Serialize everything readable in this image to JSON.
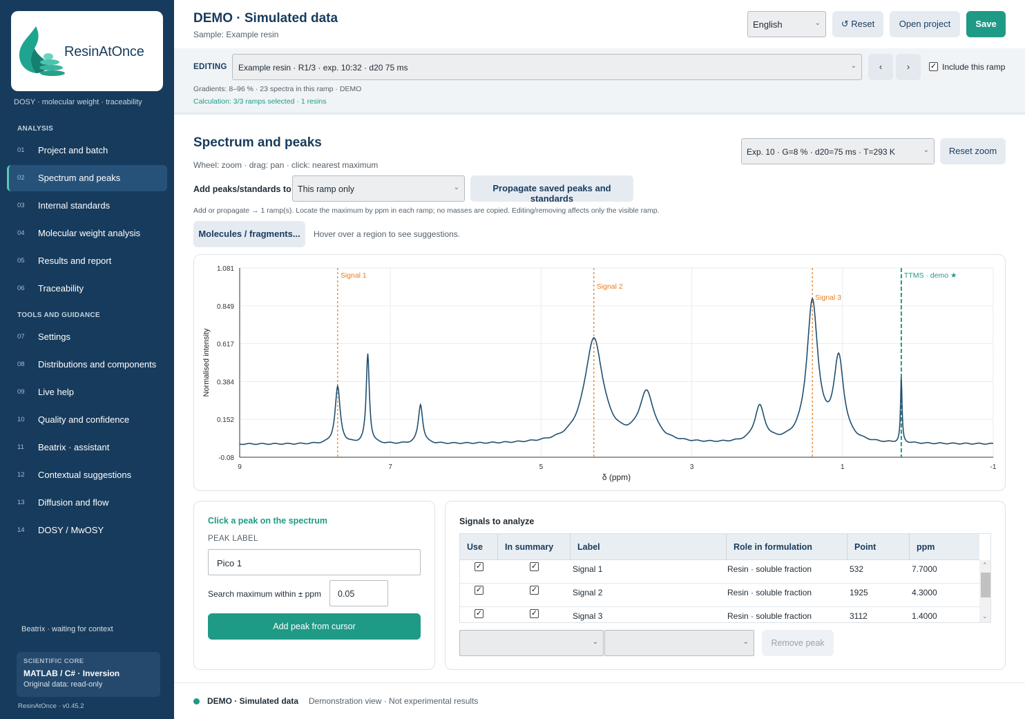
{
  "app": {
    "name": "ResinAtOnce",
    "tagline": "DOSY · molecular weight · traceability",
    "version": "ResinAtOnce · v0.45.2"
  },
  "sidebar": {
    "analysis_title": "ANALYSIS",
    "tools_title": "TOOLS AND GUIDANCE",
    "items": [
      {
        "num": "01",
        "label": "Project and batch"
      },
      {
        "num": "02",
        "label": "Spectrum and peaks",
        "active": true
      },
      {
        "num": "03",
        "label": "Internal standards"
      },
      {
        "num": "04",
        "label": "Molecular weight analysis"
      },
      {
        "num": "05",
        "label": "Results and report"
      },
      {
        "num": "06",
        "label": "Traceability"
      },
      {
        "num": "07",
        "label": "Settings"
      },
      {
        "num": "08",
        "label": "Distributions and components"
      },
      {
        "num": "09",
        "label": "Live help"
      },
      {
        "num": "10",
        "label": "Quality and confidence"
      },
      {
        "num": "11",
        "label": "Beatrix · assistant"
      },
      {
        "num": "12",
        "label": "Contextual suggestions"
      },
      {
        "num": "13",
        "label": "Diffusion and flow"
      },
      {
        "num": "14",
        "label": "DOSY / MwOSY"
      }
    ],
    "beatrix_status": "Beatrix · waiting for context",
    "core": {
      "title": "SCIENTIFIC CORE",
      "main": "MATLAB / C# · Inversion",
      "note": "Original data: read-only"
    }
  },
  "header": {
    "title": "DEMO · Simulated data",
    "sample": "Sample: Example resin",
    "language": "English",
    "reset_label": "↺ Reset",
    "open_label": "Open project",
    "save_label": "Save"
  },
  "editing": {
    "label": "EDITING",
    "selection": "Example resin · R1/3 · exp. 10:32 · d20 75 ms",
    "prev": "‹",
    "next": "›",
    "include_label": "Include this ramp",
    "include_checked": true,
    "gradients": "Gradients: 8–96 % · 23 spectra in this ramp · DEMO",
    "calculation": "Calculation: 3/3 ramps selected · 1 resins"
  },
  "spectrum": {
    "title": "Spectrum and peaks",
    "hint": "Wheel: zoom · drag: pan · click: nearest maximum",
    "experiment": "Exp. 10 · G=8 % · d20=75 ms · T=293 K",
    "reset_zoom_label": "Reset zoom",
    "add_to_label": "Add peaks/standards to:",
    "scope": "This ramp only",
    "propagate_label": "Propagate saved peaks and standards",
    "note": "Add or propagate → 1 ramp(s). Locate the maximum by ppm in each ramp; no masses are copied. Editing/removing affects only the visible ramp.",
    "molecules_label": "Molecules / fragments...",
    "hover_hint": "Hover over a region to see suggestions."
  },
  "chart_data": {
    "type": "line",
    "xlabel": "δ (ppm)",
    "ylabel": "Normalised intensity",
    "xlim": [
      9,
      -1
    ],
    "ylim": [
      -0.08,
      1.081
    ],
    "x_ticks": [
      "9",
      "7",
      "5",
      "3",
      "1",
      "-1"
    ],
    "y_ticks": [
      "1.081",
      "0.849",
      "0.617",
      "0.384",
      "0.152",
      "-0.08"
    ],
    "grid": true,
    "series": [
      {
        "color": "#1f4e6e",
        "baseline": 0.0,
        "peaks": [
          {
            "ppm": 7.7,
            "height": 0.35,
            "width": 0.04
          },
          {
            "ppm": 7.3,
            "height": 0.55,
            "width": 0.025
          },
          {
            "ppm": 6.6,
            "height": 0.24,
            "width": 0.035
          },
          {
            "ppm": 4.3,
            "height": 0.64,
            "width": 0.15
          },
          {
            "ppm": 3.6,
            "height": 0.3,
            "width": 0.12
          },
          {
            "ppm": 2.1,
            "height": 0.22,
            "width": 0.08
          },
          {
            "ppm": 1.4,
            "height": 0.86,
            "width": 0.09
          },
          {
            "ppm": 1.05,
            "height": 0.5,
            "width": 0.08
          },
          {
            "ppm": 0.22,
            "height": 0.4,
            "width": 0.012
          }
        ]
      }
    ],
    "markers": [
      {
        "ppm": 7.7,
        "label": "Signal 1",
        "color": "#e67e22",
        "dashed": "short"
      },
      {
        "ppm": 4.3,
        "label": "Signal 2",
        "color": "#e67e22",
        "dashed": "short"
      },
      {
        "ppm": 1.4,
        "label": "Signal 3",
        "color": "#e67e22",
        "dashed": "short"
      },
      {
        "ppm": 0.22,
        "label": "TTMS · demo ★",
        "color": "#1f9a86",
        "dashed": "long"
      }
    ]
  },
  "peak_form": {
    "click_hint": "Click a peak on the spectrum",
    "label_caption": "PEAK LABEL",
    "label_value": "Pico 1",
    "search_label": "Search maximum within ± ppm",
    "search_value": "0.05",
    "add_label": "Add peak from cursor"
  },
  "signals": {
    "title": "Signals to analyze",
    "columns": [
      "Use",
      "In summary",
      "Label",
      "Role in formulation",
      "Point",
      "ppm"
    ],
    "rows": [
      {
        "use": true,
        "summary": true,
        "label": "Signal 1",
        "role": "Resin · soluble fraction",
        "point": "532",
        "ppm": "7.7000"
      },
      {
        "use": true,
        "summary": true,
        "label": "Signal 2",
        "role": "Resin · soluble fraction",
        "point": "1925",
        "ppm": "4.3000"
      },
      {
        "use": true,
        "summary": true,
        "label": "Signal 3",
        "role": "Resin · soluble fraction",
        "point": "3112",
        "ppm": "1.4000"
      }
    ],
    "remove_label": "Remove peak"
  },
  "footer": {
    "title": "DEMO · Simulated data",
    "note": "Demonstration view · Not experimental results"
  },
  "colors": {
    "sidebar": "#173b5c",
    "accent": "#1f9a86",
    "marker": "#e67e22",
    "trace": "#1f4e6e"
  }
}
